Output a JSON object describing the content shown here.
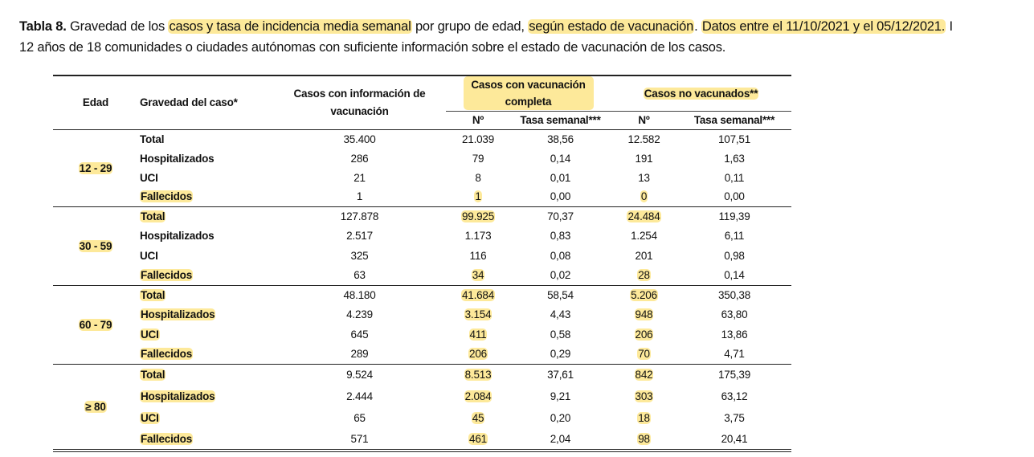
{
  "title": {
    "line1": [
      {
        "text": "Tabla 8.",
        "bold": true,
        "hl": false
      },
      {
        "text": " Gravedad de los ",
        "bold": false,
        "hl": false
      },
      {
        "text": "casos y tasa de incidencia media semanal",
        "bold": false,
        "hl": true
      },
      {
        "text": " por grupo de edad, ",
        "bold": false,
        "hl": false
      },
      {
        "text": "según estado de vacunación",
        "bold": false,
        "hl": true
      },
      {
        "text": ". ",
        "bold": false,
        "hl": false
      },
      {
        "text": "Datos entre el 11/10/2021 y el 05/12/2021.",
        "bold": false,
        "hl": true
      },
      {
        "text": " I",
        "bold": false,
        "hl": false
      }
    ],
    "line2": "12 años de 18 comunidades o ciudades autónomas con suficiente información sobre el estado de vacunación de los casos."
  },
  "header": {
    "edad": "Edad",
    "gravedad": "Gravedad del caso*",
    "casos_info": "Casos con información de vacunación",
    "vac_completa": "Casos con vacunación completa",
    "no_vacunados": "Casos no vacunados**",
    "n": "Nº",
    "tasa": "Tasa semanal***"
  },
  "groups": [
    {
      "age": "12 - 29",
      "age_hl": true,
      "rows": [
        {
          "label": "Total",
          "label_hl": false,
          "info": "35.400",
          "vac_n": "21.039",
          "vac_n_hl": false,
          "vac_tasa": "38,56",
          "nv_n": "12.582",
          "nv_n_hl": false,
          "nv_tasa": "107,51"
        },
        {
          "label": "Hospitalizados",
          "label_hl": false,
          "info": "286",
          "vac_n": "79",
          "vac_n_hl": false,
          "vac_tasa": "0,14",
          "nv_n": "191",
          "nv_n_hl": false,
          "nv_tasa": "1,63"
        },
        {
          "label": "UCI",
          "label_hl": false,
          "info": "21",
          "vac_n": "8",
          "vac_n_hl": false,
          "vac_tasa": "0,01",
          "nv_n": "13",
          "nv_n_hl": false,
          "nv_tasa": "0,11"
        },
        {
          "label": "Fallecidos",
          "label_hl": true,
          "info": "1",
          "vac_n": "1",
          "vac_n_hl": true,
          "vac_tasa": "0,00",
          "nv_n": "0",
          "nv_n_hl": true,
          "nv_tasa": "0,00"
        }
      ]
    },
    {
      "age": "30 - 59",
      "age_hl": true,
      "rows": [
        {
          "label": "Total",
          "label_hl": true,
          "info": "127.878",
          "vac_n": "99.925",
          "vac_n_hl": true,
          "vac_tasa": "70,37",
          "nv_n": "24.484",
          "nv_n_hl": true,
          "nv_tasa": "119,39"
        },
        {
          "label": "Hospitalizados",
          "label_hl": false,
          "info": "2.517",
          "vac_n": "1.173",
          "vac_n_hl": false,
          "vac_tasa": "0,83",
          "nv_n": "1.254",
          "nv_n_hl": false,
          "nv_tasa": "6,11"
        },
        {
          "label": "UCI",
          "label_hl": false,
          "info": "325",
          "vac_n": "116",
          "vac_n_hl": false,
          "vac_tasa": "0,08",
          "nv_n": "201",
          "nv_n_hl": false,
          "nv_tasa": "0,98"
        },
        {
          "label": "Fallecidos",
          "label_hl": true,
          "info": "63",
          "vac_n": "34",
          "vac_n_hl": true,
          "vac_tasa": "0,02",
          "nv_n": "28",
          "nv_n_hl": true,
          "nv_tasa": "0,14"
        }
      ]
    },
    {
      "age": "60 - 79",
      "age_hl": true,
      "rows": [
        {
          "label": "Total",
          "label_hl": true,
          "info": "48.180",
          "vac_n": "41.684",
          "vac_n_hl": true,
          "vac_tasa": "58,54",
          "nv_n": "5.206",
          "nv_n_hl": true,
          "nv_tasa": "350,38"
        },
        {
          "label": "Hospitalizados",
          "label_hl": true,
          "info": "4.239",
          "vac_n": "3.154",
          "vac_n_hl": true,
          "vac_tasa": "4,43",
          "nv_n": "948",
          "nv_n_hl": true,
          "nv_tasa": "63,80"
        },
        {
          "label": "UCI",
          "label_hl": true,
          "info": "645",
          "vac_n": "411",
          "vac_n_hl": true,
          "vac_tasa": "0,58",
          "nv_n": "206",
          "nv_n_hl": true,
          "nv_tasa": "13,86"
        },
        {
          "label": "Fallecidos",
          "label_hl": true,
          "info": "289",
          "vac_n": "206",
          "vac_n_hl": true,
          "vac_tasa": "0,29",
          "nv_n": "70",
          "nv_n_hl": true,
          "nv_tasa": "4,71"
        }
      ]
    },
    {
      "age": "≥ 80",
      "age_hl": true,
      "rows": [
        {
          "label": "Total",
          "label_hl": true,
          "info": "9.524",
          "vac_n": "8.513",
          "vac_n_hl": true,
          "vac_tasa": "37,61",
          "nv_n": "842",
          "nv_n_hl": true,
          "nv_tasa": "175,39"
        },
        {
          "label": "Hospitalizados",
          "label_hl": true,
          "info": "2.444",
          "vac_n": "2.084",
          "vac_n_hl": true,
          "vac_tasa": "9,21",
          "nv_n": "303",
          "nv_n_hl": true,
          "nv_tasa": "63,12"
        },
        {
          "label": "UCI",
          "label_hl": true,
          "info": "65",
          "vac_n": "45",
          "vac_n_hl": true,
          "vac_tasa": "0,20",
          "nv_n": "18",
          "nv_n_hl": true,
          "nv_tasa": "3,75"
        },
        {
          "label": "Fallecidos",
          "label_hl": true,
          "info": "571",
          "vac_n": "461",
          "vac_n_hl": true,
          "vac_tasa": "2,04",
          "nv_n": "98",
          "nv_n_hl": true,
          "nv_tasa": "20,41"
        }
      ]
    }
  ],
  "colors": {
    "highlight": "#fde99a",
    "text": "#111111",
    "rule": "#222222"
  }
}
